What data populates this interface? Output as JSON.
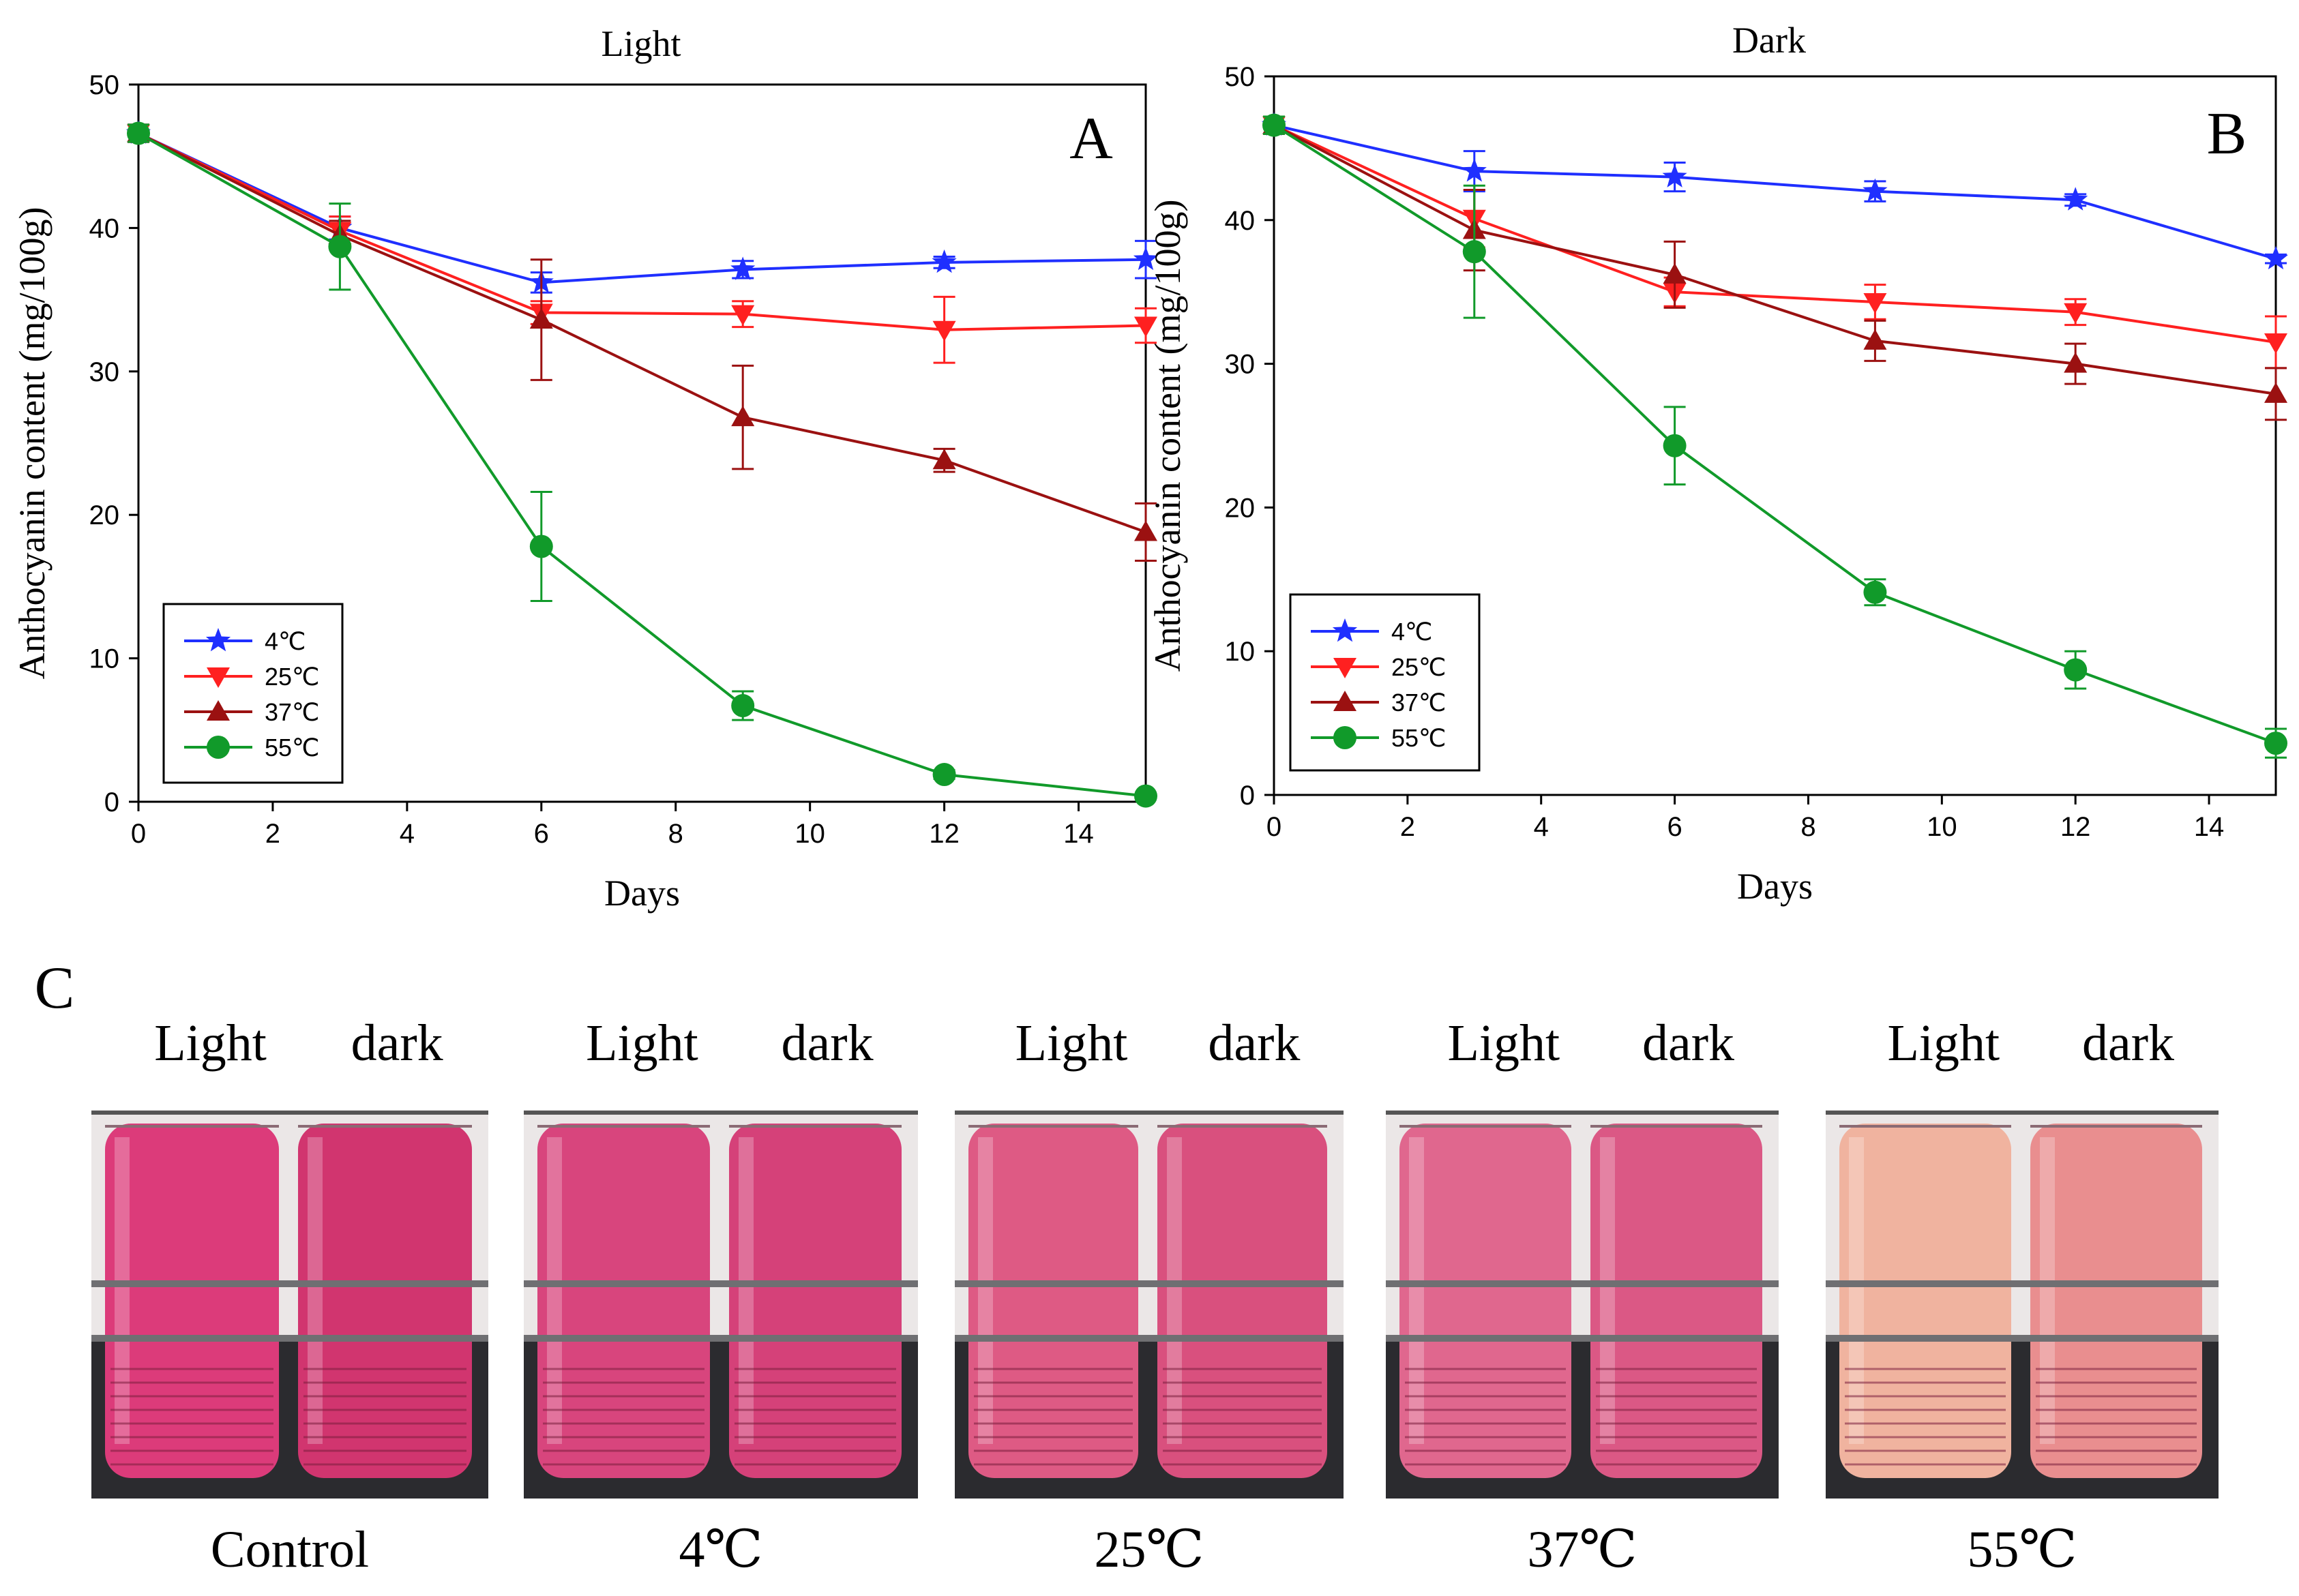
{
  "chart_data": [
    {
      "panel": "A",
      "type": "line",
      "title": "Light",
      "xlabel": "Days",
      "ylabel": "Anthocyanin content (mg/100g)",
      "xlim": [
        0,
        15
      ],
      "ylim": [
        0,
        50
      ],
      "xticks": [
        0,
        2,
        4,
        6,
        8,
        10,
        12,
        14
      ],
      "yticks": [
        0,
        10,
        20,
        30,
        40,
        50
      ],
      "x": [
        0,
        3,
        6,
        9,
        12,
        15
      ],
      "series": [
        {
          "name": "4℃",
          "color": "#1f2fff",
          "marker": "star",
          "values": [
            46.6,
            40.0,
            36.2,
            37.1,
            37.6,
            37.8
          ],
          "errors": [
            0.6,
            0.8,
            0.7,
            0.6,
            0.4,
            1.3
          ]
        },
        {
          "name": "25℃",
          "color": "#ff2020",
          "marker": "tri-down",
          "values": [
            46.6,
            39.8,
            34.1,
            34.0,
            32.9,
            33.2
          ],
          "errors": [
            0.6,
            1.0,
            0.8,
            0.9,
            2.3,
            1.2
          ]
        },
        {
          "name": "37℃",
          "color": "#9b1111",
          "marker": "tri-up",
          "values": [
            46.6,
            39.5,
            33.6,
            26.8,
            23.8,
            18.8
          ],
          "errors": [
            0.6,
            1.0,
            4.2,
            3.6,
            0.8,
            2.0
          ]
        },
        {
          "name": "55℃",
          "color": "#119a2a",
          "marker": "circle",
          "values": [
            46.6,
            38.7,
            17.8,
            6.7,
            1.9,
            0.4
          ],
          "errors": [
            0.6,
            3.0,
            3.8,
            1.0,
            0.3,
            0.2
          ]
        }
      ]
    },
    {
      "panel": "B",
      "type": "line",
      "title": "Dark",
      "xlabel": "Days",
      "ylabel": "Anthocyanin content (mg/100g)",
      "xlim": [
        0,
        15
      ],
      "ylim": [
        0,
        50
      ],
      "xticks": [
        0,
        2,
        4,
        6,
        8,
        10,
        12,
        14
      ],
      "yticks": [
        0,
        10,
        20,
        30,
        40,
        50
      ],
      "x": [
        0,
        3,
        6,
        9,
        12,
        15
      ],
      "series": [
        {
          "name": "4℃",
          "color": "#1f2fff",
          "marker": "star",
          "values": [
            46.6,
            43.4,
            43.0,
            42.0,
            41.4,
            37.3
          ],
          "errors": [
            0.6,
            1.4,
            1.0,
            0.7,
            0.4,
            0.3
          ]
        },
        {
          "name": "25℃",
          "color": "#ff2020",
          "marker": "tri-down",
          "values": [
            46.6,
            40.1,
            35.0,
            34.3,
            33.6,
            31.5
          ],
          "errors": [
            0.6,
            2.0,
            1.0,
            1.2,
            0.9,
            1.8
          ]
        },
        {
          "name": "37℃",
          "color": "#9b1111",
          "marker": "tri-up",
          "values": [
            46.6,
            39.3,
            36.2,
            31.6,
            30.0,
            27.9
          ],
          "errors": [
            0.6,
            2.8,
            2.3,
            1.4,
            1.4,
            1.8
          ]
        },
        {
          "name": "55℃",
          "color": "#119a2a",
          "marker": "circle",
          "values": [
            46.6,
            37.8,
            24.3,
            14.1,
            8.7,
            3.6
          ],
          "errors": [
            0.6,
            4.6,
            2.7,
            0.9,
            1.3,
            1.0
          ]
        }
      ]
    }
  ],
  "photo_panel": {
    "label": "C",
    "groups": [
      {
        "name": "Control",
        "light_label": "Light",
        "dark_label": "dark",
        "light_color": "#dc3b7a",
        "dark_color": "#d1356f"
      },
      {
        "name": "4℃",
        "light_label": "Light",
        "dark_label": "dark",
        "light_color": "#d8457d",
        "dark_color": "#d54179"
      },
      {
        "name": "25℃",
        "light_label": "Light",
        "dark_label": "dark",
        "light_color": "#de5a84",
        "dark_color": "#d9507e"
      },
      {
        "name": "37℃",
        "light_label": "Light",
        "dark_label": "dark",
        "light_color": "#e0678e",
        "dark_color": "#db5885"
      },
      {
        "name": "55℃",
        "light_label": "Light",
        "dark_label": "dark",
        "light_color": "#f0b39f",
        "dark_color": "#e98e8f"
      }
    ]
  }
}
